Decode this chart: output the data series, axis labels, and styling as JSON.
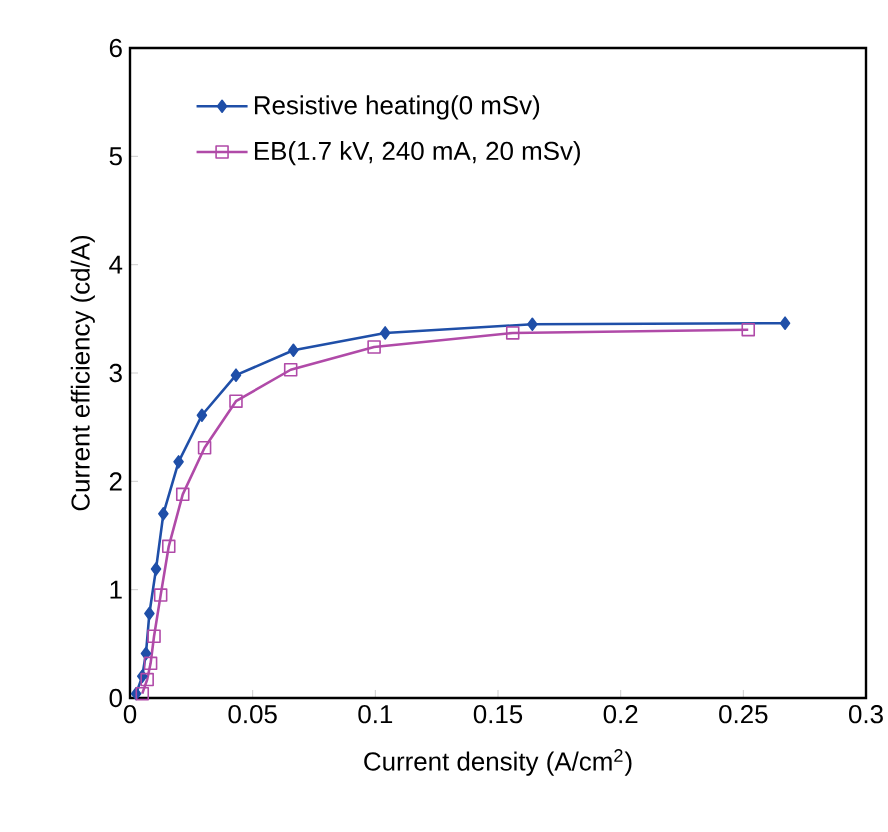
{
  "chart_data": {
    "type": "line",
    "xlabel": "Current density (A/cm$^{2}$)",
    "ylabel": "Current efficiency (cd/A)",
    "xlim": [
      0,
      0.3
    ],
    "ylim": [
      0,
      6
    ],
    "xticks": [
      0,
      0.05,
      0.1,
      0.15,
      0.2,
      0.25,
      0.3
    ],
    "yticks": [
      0,
      1,
      2,
      3,
      4,
      5,
      6
    ],
    "grid": false,
    "legend": "top left",
    "series": [
      {
        "name": "Resistive heating(0 mSv)",
        "color": "#1f4fa8",
        "marker": "diamond",
        "x": [
          0.0025,
          0.005,
          0.0065,
          0.0079,
          0.0106,
          0.0136,
          0.0198,
          0.0293,
          0.0432,
          0.0666,
          0.104,
          0.164,
          0.267
        ],
        "values": [
          0.04,
          0.2,
          0.41,
          0.78,
          1.19,
          1.7,
          2.18,
          2.61,
          2.98,
          3.21,
          3.37,
          3.45,
          3.46
        ]
      },
      {
        "name": "EB(1.7 kV, 240 mA, 20 mSv)",
        "color": "#b04aa8",
        "marker": "square",
        "x": [
          0.005,
          0.007,
          0.0084,
          0.0098,
          0.0125,
          0.0158,
          0.0215,
          0.0304,
          0.0432,
          0.0655,
          0.0995,
          0.156,
          0.252
        ],
        "values": [
          0.04,
          0.17,
          0.32,
          0.57,
          0.95,
          1.4,
          1.88,
          2.31,
          2.74,
          3.03,
          3.24,
          3.37,
          3.4
        ]
      }
    ]
  }
}
